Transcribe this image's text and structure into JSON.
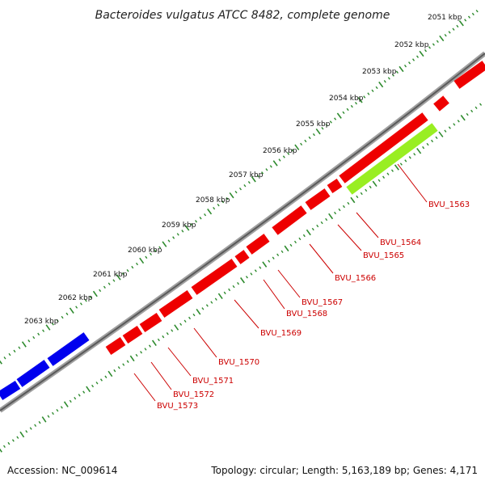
{
  "title": "Bacteroides vulgatus ATCC 8482, complete genome",
  "footer": {
    "accession": "Accession: NC_009614",
    "summary": "Topology: circular; Length: 5,163,189 bp; Genes: 4,171"
  },
  "colors": {
    "backbone": "#808080",
    "tick_green": "#2e8b2e",
    "gene_red": "#ee0000",
    "gene_blue": "#0000ee",
    "gene_highlight": "#99ee22",
    "label_red": "#cc0000"
  },
  "kbp_ticks": [
    "2051 kbp",
    "2052 kbp",
    "2053 kbp",
    "2054 kbp",
    "2055 kbp",
    "2056 kbp",
    "2057 kbp",
    "2058 kbp",
    "2059 kbp",
    "2060 kbp",
    "2061 kbp",
    "2062 kbp",
    "2063 kbp"
  ],
  "genes": [
    {
      "id": "BVU_1563",
      "highlight": true
    },
    {
      "id": "BVU_1564"
    },
    {
      "id": "BVU_1565"
    },
    {
      "id": "BVU_1566"
    },
    {
      "id": "BVU_1567"
    },
    {
      "id": "BVU_1568"
    },
    {
      "id": "BVU_1569"
    },
    {
      "id": "BVU_1570"
    },
    {
      "id": "BVU_1571"
    },
    {
      "id": "BVU_1572"
    },
    {
      "id": "BVU_1573"
    }
  ]
}
